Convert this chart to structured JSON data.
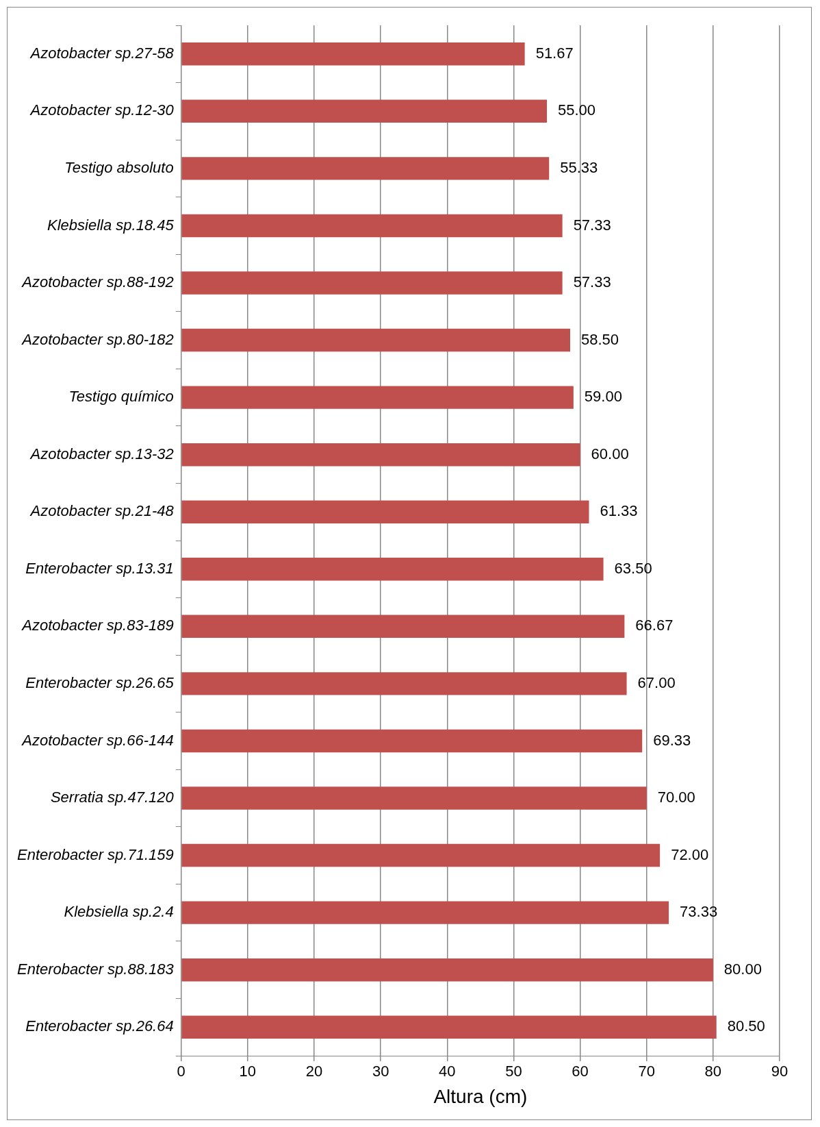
{
  "chart_data": {
    "type": "bar",
    "orientation": "horizontal",
    "xlabel": "Altura (cm)",
    "categories": [
      "Azotobacter sp.27-58",
      "Azotobacter sp.12-30",
      "Testigo absoluto",
      "Klebsiella sp.18.45",
      "Azotobacter sp.88-192",
      "Azotobacter sp.80-182",
      "Testigo químico",
      "Azotobacter sp.13-32",
      "Azotobacter sp.21-48",
      "Enterobacter sp.13.31",
      "Azotobacter sp.83-189",
      "Enterobacter sp.26.65",
      "Azotobacter sp.66-144",
      "Serratia sp.47.120",
      "Enterobacter sp.71.159",
      "Klebsiella sp.2.4",
      "Enterobacter sp.88.183",
      "Enterobacter sp.26.64"
    ],
    "values": [
      51.67,
      55.0,
      55.33,
      57.33,
      57.33,
      58.5,
      59.0,
      60.0,
      61.33,
      63.5,
      66.67,
      67.0,
      69.33,
      70.0,
      72.0,
      73.33,
      80.0,
      80.5
    ],
    "value_labels": [
      "51.67",
      "55.00",
      "55.33",
      "57.33",
      "57.33",
      "58.50",
      "59.00",
      "60.00",
      "61.33",
      "63.50",
      "66.67",
      "67.00",
      "69.33",
      "70.00",
      "72.00",
      "73.33",
      "80.00",
      "80.50"
    ],
    "color": "#c0504d",
    "xlim": [
      0,
      90
    ],
    "xticks": [
      0,
      10,
      20,
      30,
      40,
      50,
      60,
      70,
      80,
      90
    ],
    "grid": "x",
    "legend": false
  }
}
